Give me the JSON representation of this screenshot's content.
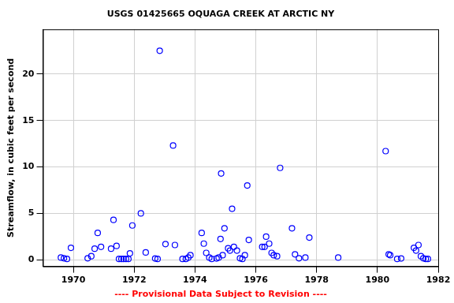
{
  "chart_data": {
    "type": "scatter",
    "title": "USGS 01425665 OQUAGA CREEK AT ARCTIC NY",
    "subtitle": "---- Provisional Data Subject to Revision ----",
    "y_label": "Streamflow, in cubic feet per second",
    "x": [
      1969.59,
      1969.69,
      1969.79,
      1969.92,
      1970.47,
      1970.59,
      1970.7,
      1970.8,
      1970.91,
      1971.24,
      1971.32,
      1971.42,
      1971.5,
      1971.58,
      1971.65,
      1971.73,
      1971.81,
      1971.86,
      1971.94,
      1972.22,
      1972.38,
      1972.69,
      1972.77,
      1972.84,
      1973.03,
      1973.28,
      1973.34,
      1973.59,
      1973.7,
      1973.78,
      1973.85,
      1974.22,
      1974.29,
      1974.37,
      1974.47,
      1974.55,
      1974.71,
      1974.78,
      1974.84,
      1974.86,
      1974.91,
      1974.97,
      1975.09,
      1975.15,
      1975.22,
      1975.28,
      1975.38,
      1975.48,
      1975.56,
      1975.64,
      1975.72,
      1975.77,
      1976.21,
      1976.29,
      1976.34,
      1976.44,
      1976.52,
      1976.59,
      1976.7,
      1976.8,
      1977.19,
      1977.29,
      1977.42,
      1977.63,
      1977.76,
      1978.71,
      1980.27,
      1980.37,
      1980.42,
      1980.65,
      1980.78,
      1981.2,
      1981.27,
      1981.35,
      1981.43,
      1981.51,
      1981.59,
      1981.66
    ],
    "values": [
      0.25,
      0.17,
      0.1,
      1.3,
      0.17,
      0.4,
      1.2,
      2.9,
      1.4,
      1.2,
      4.3,
      1.5,
      0.1,
      0.1,
      0.1,
      0.1,
      0.1,
      0.7,
      3.7,
      5.0,
      0.8,
      0.15,
      0.1,
      22.5,
      1.7,
      12.3,
      1.6,
      0.1,
      0.1,
      0.25,
      0.5,
      2.9,
      1.75,
      0.75,
      0.25,
      0.1,
      0.15,
      0.25,
      2.25,
      9.3,
      0.5,
      3.4,
      1.25,
      1.0,
      5.5,
      1.4,
      1.0,
      0.17,
      0.1,
      0.5,
      8.0,
      2.15,
      1.4,
      1.4,
      2.5,
      1.75,
      0.75,
      0.5,
      0.4,
      9.9,
      3.4,
      0.6,
      0.17,
      0.25,
      2.4,
      0.25,
      11.7,
      0.6,
      0.5,
      0.1,
      0.15,
      1.3,
      1.0,
      1.6,
      0.4,
      0.17,
      0.1,
      0.1
    ],
    "color": "#0000ff",
    "marker": "circle",
    "xlim": [
      1969,
      1982
    ],
    "xticks": [
      1970,
      1972,
      1974,
      1976,
      1978,
      1980,
      1982
    ],
    "ylim": [
      -0.7,
      24.8
    ],
    "yticks": [
      0,
      5,
      10,
      15,
      20
    ],
    "grid": true
  }
}
